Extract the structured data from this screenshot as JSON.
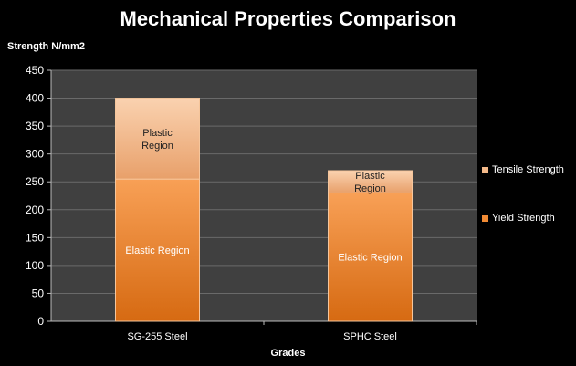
{
  "chart_data": {
    "type": "bar",
    "stacked": true,
    "title": "Mechanical Properties Comparison",
    "xlabel": "Grades",
    "ylabel": "Strength N/mm2",
    "ylim": [
      0,
      450
    ],
    "yticks": [
      0,
      50,
      100,
      150,
      200,
      250,
      300,
      350,
      400,
      450
    ],
    "grid": true,
    "legend_position": "right",
    "categories": [
      "SG-255 Steel",
      "SPHC Steel"
    ],
    "series": [
      {
        "name": "Yield Strength",
        "values": [
          255,
          230
        ],
        "color": "#f08a34",
        "labels": [
          "Elastic Region",
          "Elastic Region"
        ]
      },
      {
        "name": "Tensile Strength",
        "values": [
          145,
          40
        ],
        "color": "#f4b98a",
        "labels": [
          "Plastic Region",
          "Plastic Region"
        ]
      }
    ]
  }
}
